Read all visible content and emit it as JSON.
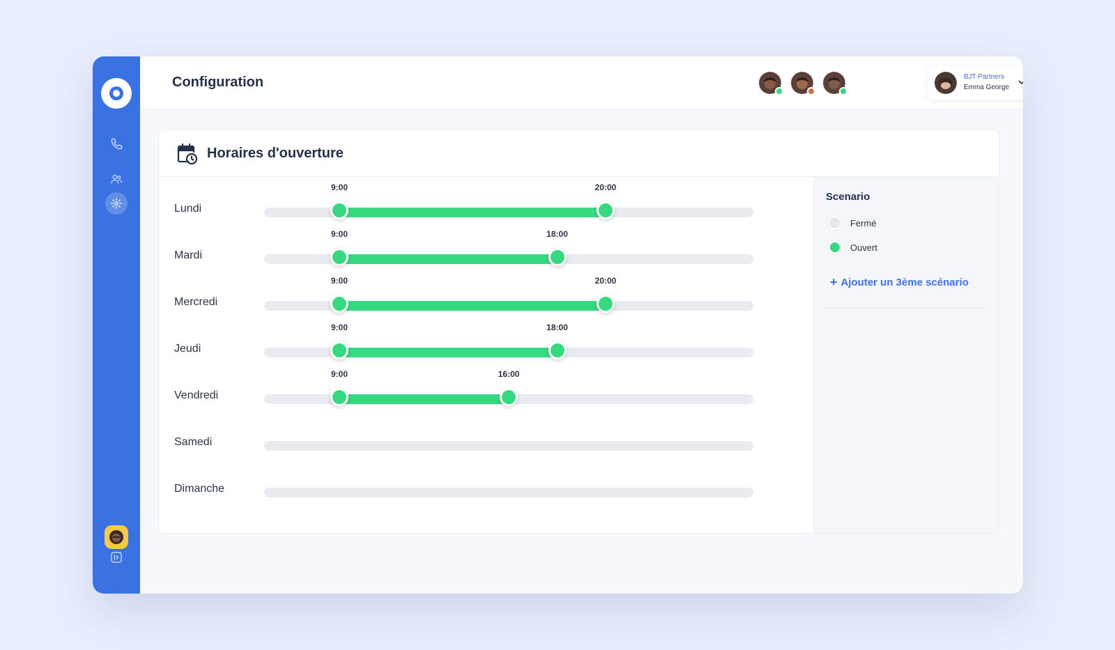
{
  "header": {
    "title": "Configuration"
  },
  "team_avatars": [
    {
      "name": "team-avatar-1",
      "status_color": "#36d97f",
      "face_color": "#8a5a44"
    },
    {
      "name": "team-avatar-2",
      "status_color": "#c8744b",
      "face_color": "#9c6a4e"
    },
    {
      "name": "team-avatar-3",
      "status_color": "#36d97f",
      "face_color": "#7d5b49"
    }
  ],
  "account": {
    "company": "BJT Partners",
    "user": "Emma George"
  },
  "card": {
    "title": "Horaires d'ouverture",
    "icon": "calendar-clock-icon"
  },
  "schedule": {
    "range_start_hour": 0,
    "range_end_hour": 24,
    "days": [
      {
        "label": "Lundi",
        "open": "9:00",
        "close": "20:00"
      },
      {
        "label": "Mardi",
        "open": "9:00",
        "close": "18:00"
      },
      {
        "label": "Mercredi",
        "open": "9:00",
        "close": "20:00"
      },
      {
        "label": "Jeudi",
        "open": "9:00",
        "close": "18:00"
      },
      {
        "label": "Vendredi",
        "open": "9:00",
        "close": "16:00"
      },
      {
        "label": "Samedi",
        "open": null,
        "close": null
      },
      {
        "label": "Dimanche",
        "open": null,
        "close": null
      }
    ]
  },
  "scenario": {
    "title": "Scenario",
    "options": [
      {
        "label": "Fermé",
        "color": "#e6e8ee"
      },
      {
        "label": "Ouvert",
        "color": "#36d97f"
      }
    ],
    "add_label": "Ajouter un 3ème scénario"
  },
  "sidebar": {
    "items": [
      {
        "icon": "phone-icon",
        "active": false
      },
      {
        "icon": "users-icon",
        "active": false
      },
      {
        "icon": "gear-icon",
        "active": true
      }
    ]
  },
  "colors": {
    "accent": "#3b72e3",
    "open_green": "#36d97f",
    "track": "#e9ebf1"
  }
}
